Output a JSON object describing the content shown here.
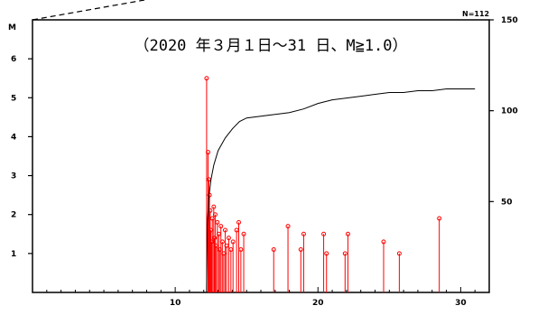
{
  "chart_data": {
    "type": "line",
    "title": "（2020 年３月１日～31 日、M≧1.0）",
    "count_label": "N=112",
    "left_axis": {
      "label": "M",
      "ylim": [
        0,
        7
      ],
      "ticks": [
        "1",
        "2",
        "3",
        "4",
        "5",
        "6"
      ]
    },
    "right_axis": {
      "ylim": [
        0,
        150
      ],
      "ticks": [
        "50",
        "100",
        "150"
      ]
    },
    "x_axis": {
      "xlim": [
        0,
        32
      ],
      "ticks": [
        "10",
        "20",
        "30"
      ]
    },
    "series": [
      {
        "kind": "mt-stems",
        "color": "#ff0000",
        "points": [
          {
            "x": 12.2,
            "m": 5.5
          },
          {
            "x": 12.3,
            "m": 3.6
          },
          {
            "x": 12.35,
            "m": 2.9
          },
          {
            "x": 12.4,
            "m": 2.5
          },
          {
            "x": 12.45,
            "m": 2.1
          },
          {
            "x": 12.5,
            "m": 1.6
          },
          {
            "x": 12.55,
            "m": 1.3
          },
          {
            "x": 12.6,
            "m": 1.9
          },
          {
            "x": 12.7,
            "m": 2.2
          },
          {
            "x": 12.75,
            "m": 1.4
          },
          {
            "x": 12.8,
            "m": 2.0
          },
          {
            "x": 12.85,
            "m": 1.2
          },
          {
            "x": 12.95,
            "m": 1.8
          },
          {
            "x": 13.05,
            "m": 1.5
          },
          {
            "x": 13.1,
            "m": 1.1
          },
          {
            "x": 13.2,
            "m": 1.7
          },
          {
            "x": 13.3,
            "m": 1.3
          },
          {
            "x": 13.4,
            "m": 1.0
          },
          {
            "x": 13.5,
            "m": 1.6
          },
          {
            "x": 13.6,
            "m": 1.2
          },
          {
            "x": 13.75,
            "m": 1.4
          },
          {
            "x": 13.9,
            "m": 1.1
          },
          {
            "x": 14.05,
            "m": 1.3
          },
          {
            "x": 14.3,
            "m": 1.6
          },
          {
            "x": 14.45,
            "m": 1.8
          },
          {
            "x": 14.6,
            "m": 1.1
          },
          {
            "x": 14.8,
            "m": 1.5
          },
          {
            "x": 16.9,
            "m": 1.1
          },
          {
            "x": 17.9,
            "m": 1.7
          },
          {
            "x": 18.8,
            "m": 1.1
          },
          {
            "x": 19.0,
            "m": 1.5
          },
          {
            "x": 20.4,
            "m": 1.5
          },
          {
            "x": 20.6,
            "m": 1.0
          },
          {
            "x": 21.9,
            "m": 1.0
          },
          {
            "x": 22.1,
            "m": 1.5
          },
          {
            "x": 24.6,
            "m": 1.3
          },
          {
            "x": 25.7,
            "m": 1.0
          },
          {
            "x": 28.5,
            "m": 1.9
          }
        ]
      },
      {
        "kind": "cumulative-count",
        "color": "#000000",
        "points": [
          [
            12.2,
            0
          ],
          [
            12.2,
            2
          ],
          [
            12.25,
            38
          ],
          [
            12.3,
            45
          ],
          [
            12.35,
            52
          ],
          [
            12.5,
            62
          ],
          [
            12.7,
            70
          ],
          [
            13.0,
            78
          ],
          [
            13.5,
            85
          ],
          [
            14.0,
            90
          ],
          [
            14.5,
            94
          ],
          [
            15.0,
            96
          ],
          [
            16.0,
            97
          ],
          [
            17.0,
            98
          ],
          [
            18.0,
            99
          ],
          [
            19.0,
            101
          ],
          [
            20.0,
            104
          ],
          [
            21.0,
            106
          ],
          [
            22.0,
            107
          ],
          [
            23.0,
            108
          ],
          [
            24.0,
            109
          ],
          [
            25.0,
            110
          ],
          [
            26.0,
            110
          ],
          [
            27.0,
            111
          ],
          [
            28.0,
            111
          ],
          [
            29.0,
            112
          ],
          [
            30.0,
            112
          ],
          [
            31.0,
            112
          ]
        ]
      }
    ]
  }
}
